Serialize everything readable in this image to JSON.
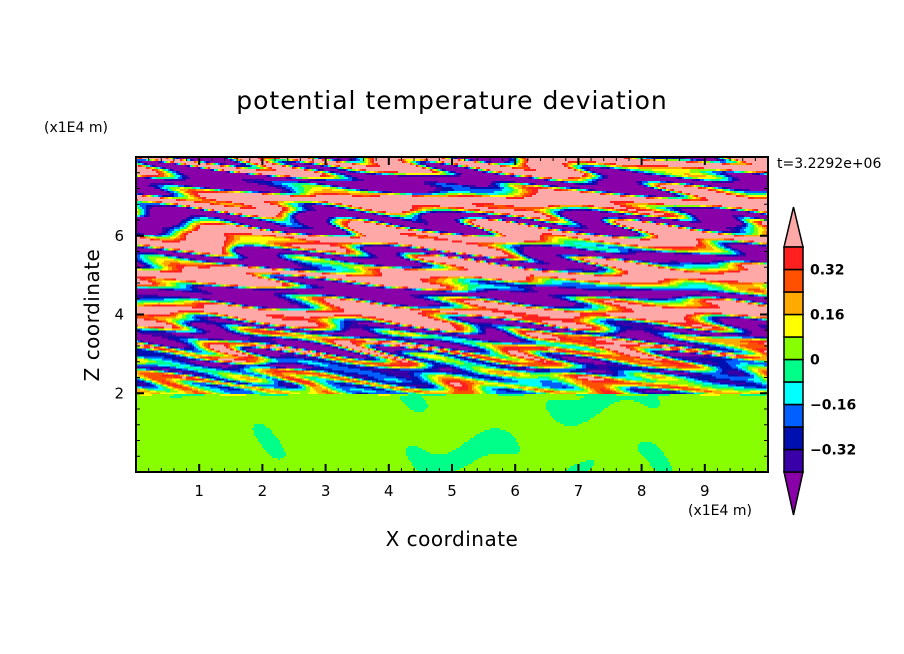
{
  "chart_data": {
    "type": "heatmap",
    "title": "potential temperature deviation",
    "xlabel": "X coordinate",
    "ylabel": "Z coordinate",
    "x_unit": "(x1E4 m)",
    "y_unit": "(x1E4 m)",
    "annotation": "t=3.2292e+06",
    "xlim": [
      0,
      10
    ],
    "ylim": [
      0,
      8
    ],
    "x_ticks": [
      "1",
      "2",
      "3",
      "4",
      "5",
      "6",
      "7",
      "8",
      "9"
    ],
    "y_ticks": [
      "2",
      "4",
      "6"
    ],
    "x_tick_values": [
      1,
      2,
      3,
      4,
      5,
      6,
      7,
      8,
      9
    ],
    "y_tick_values": [
      2,
      4,
      6
    ],
    "colorbar": {
      "levels": [
        -0.4,
        -0.32,
        -0.24,
        -0.16,
        -0.08,
        0,
        0.08,
        0.16,
        0.24,
        0.32,
        0.4
      ],
      "labels": [
        "0.32",
        "0.16",
        "0",
        "−0.16",
        "−0.32"
      ],
      "label_values": [
        0.32,
        0.16,
        0,
        -0.16,
        -0.32
      ],
      "colors": [
        "#8a00a8",
        "#3a00a8",
        "#0010b0",
        "#0060ff",
        "#00ffff",
        "#00ff88",
        "#88ff00",
        "#ffff00",
        "#ffaa00",
        "#ff5000",
        "#ff2020",
        "#ffa8a8"
      ],
      "extend": "both"
    },
    "grid": false
  }
}
